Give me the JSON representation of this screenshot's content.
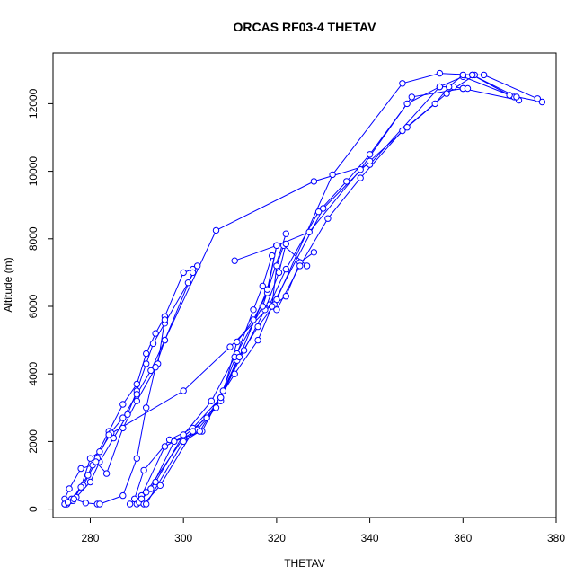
{
  "chart_data": {
    "type": "line",
    "title": "ORCAS RF03-4 THETAV",
    "xlabel": "THETAV",
    "ylabel": "Altitude (m)",
    "xlim": [
      272,
      380
    ],
    "ylim": [
      -250,
      13500
    ],
    "xticks": [
      280,
      300,
      320,
      340,
      360,
      380
    ],
    "yticks": [
      0,
      2000,
      4000,
      6000,
      8000,
      10000,
      12000
    ],
    "markers": "open-circle",
    "grid": false,
    "legend": "none",
    "color": "#0000ff",
    "series": [
      {
        "x": [
          274.5,
          276,
          279.5,
          281,
          284,
          287,
          290,
          292,
          294,
          296,
          300,
          302
        ],
        "y": [
          150,
          250,
          1000,
          1500,
          2300,
          3100,
          3700,
          4600,
          5200,
          5700,
          7000,
          7100
        ]
      },
      {
        "x": [
          275,
          277,
          280,
          282,
          285,
          288,
          290,
          292,
          293.5,
          296,
          301,
          303
        ],
        "y": [
          200,
          350,
          800,
          1400,
          2100,
          2800,
          3500,
          4300,
          4900,
          5500,
          6700,
          7200
        ]
      },
      {
        "x": [
          274.5,
          275.5,
          278,
          280.5,
          281.5,
          284,
          287,
          290,
          293,
          296,
          302
        ],
        "y": [
          300,
          600,
          1200,
          1300,
          1500,
          2200,
          2700,
          3400,
          4100,
          5000,
          7000
        ]
      },
      {
        "x": [
          274.8,
          276,
          278.5,
          281.2,
          283.5,
          287,
          290,
          294.5,
          296
        ],
        "y": [
          150,
          300,
          700,
          1400,
          1050,
          2400,
          3200,
          4300,
          5600
        ]
      },
      {
        "x": [
          275,
          276.3,
          278,
          280,
          282,
          284.5
        ],
        "y": [
          150,
          250,
          650,
          1500,
          1700,
          2250
        ]
      },
      {
        "x": [
          274.5,
          275.2,
          276.5,
          279,
          281.5
        ],
        "y": [
          150,
          200,
          300,
          180,
          150
        ]
      },
      {
        "x": [
          282,
          287,
          290,
          292,
          294,
          296,
          307,
          328,
          340,
          355,
          360,
          371
        ],
        "y": [
          150,
          400,
          1500,
          3000,
          4200,
          5000,
          8250,
          9700,
          10200,
          12500,
          12800,
          12200
        ]
      },
      {
        "x": [
          284,
          300,
          310,
          320,
          332,
          347,
          355,
          362,
          370,
          377
        ],
        "y": [
          2200,
          3500,
          4800,
          6200,
          9900,
          12600,
          12900,
          12850,
          12250,
          12050
        ]
      },
      {
        "x": [
          288.5,
          291,
          296,
          300,
          305,
          311,
          316,
          319,
          320,
          321.5,
          326.5
        ],
        "y": [
          150,
          400,
          1850,
          2150,
          2700,
          4000,
          5000,
          6000,
          7200,
          7800,
          7200
        ]
      },
      {
        "x": [
          289.5,
          291.5,
          297,
          302,
          308,
          313,
          317.5,
          320.5,
          322
        ],
        "y": [
          300,
          1150,
          2050,
          2400,
          3300,
          4700,
          5900,
          7000,
          7850
        ]
      },
      {
        "x": [
          290,
          292,
          300,
          303,
          307,
          311.5,
          315,
          317,
          319
        ],
        "y": [
          150,
          500,
          2100,
          2350,
          3000,
          4600,
          5900,
          6600,
          7500
        ]
      },
      {
        "x": [
          290.5,
          293,
          298,
          304,
          308.5,
          311.5,
          316,
          319.5,
          322,
          325,
          328
        ],
        "y": [
          200,
          600,
          2000,
          2300,
          3500,
          4400,
          5400,
          6050,
          6300,
          7300,
          7600
        ]
      },
      {
        "x": [
          291,
          294,
          300,
          306,
          311,
          317,
          322
        ],
        "y": [
          300,
          800,
          2200,
          3200,
          4500,
          6000,
          8150
        ]
      },
      {
        "x": [
          291.5,
          295,
          302,
          308,
          311.5,
          315,
          318,
          320
        ],
        "y": [
          150,
          700,
          2300,
          3200,
          4950,
          5600,
          6400,
          7800
        ]
      },
      {
        "x": [
          292,
          300,
          303.5,
          308,
          312,
          318,
          320
        ],
        "y": [
          150,
          2000,
          2300,
          3300,
          4500,
          6500,
          7800
        ]
      },
      {
        "x": [
          311,
          320,
          327,
          338,
          349,
          360,
          372
        ],
        "y": [
          7350,
          7800,
          8200,
          10050,
          12200,
          12450,
          12100
        ]
      },
      {
        "x": [
          318.5,
          322,
          329,
          335,
          340,
          348,
          355,
          358,
          360,
          361
        ],
        "y": [
          6050,
          7100,
          8800,
          9700,
          10500,
          12000,
          12500,
          12500,
          12450,
          12450
        ]
      },
      {
        "x": [
          320,
          325,
          331,
          338,
          347,
          356.5,
          362.5,
          364.5,
          376
        ],
        "y": [
          5900,
          7200,
          8600,
          9800,
          11200,
          12300,
          12850,
          12850,
          12150
        ]
      },
      {
        "x": [
          319,
          330,
          340,
          348,
          354,
          357,
          360,
          362,
          371.5
        ],
        "y": [
          6000,
          8900,
          10300,
          11300,
          12000,
          12500,
          12850,
          12850,
          12200
        ]
      }
    ]
  }
}
